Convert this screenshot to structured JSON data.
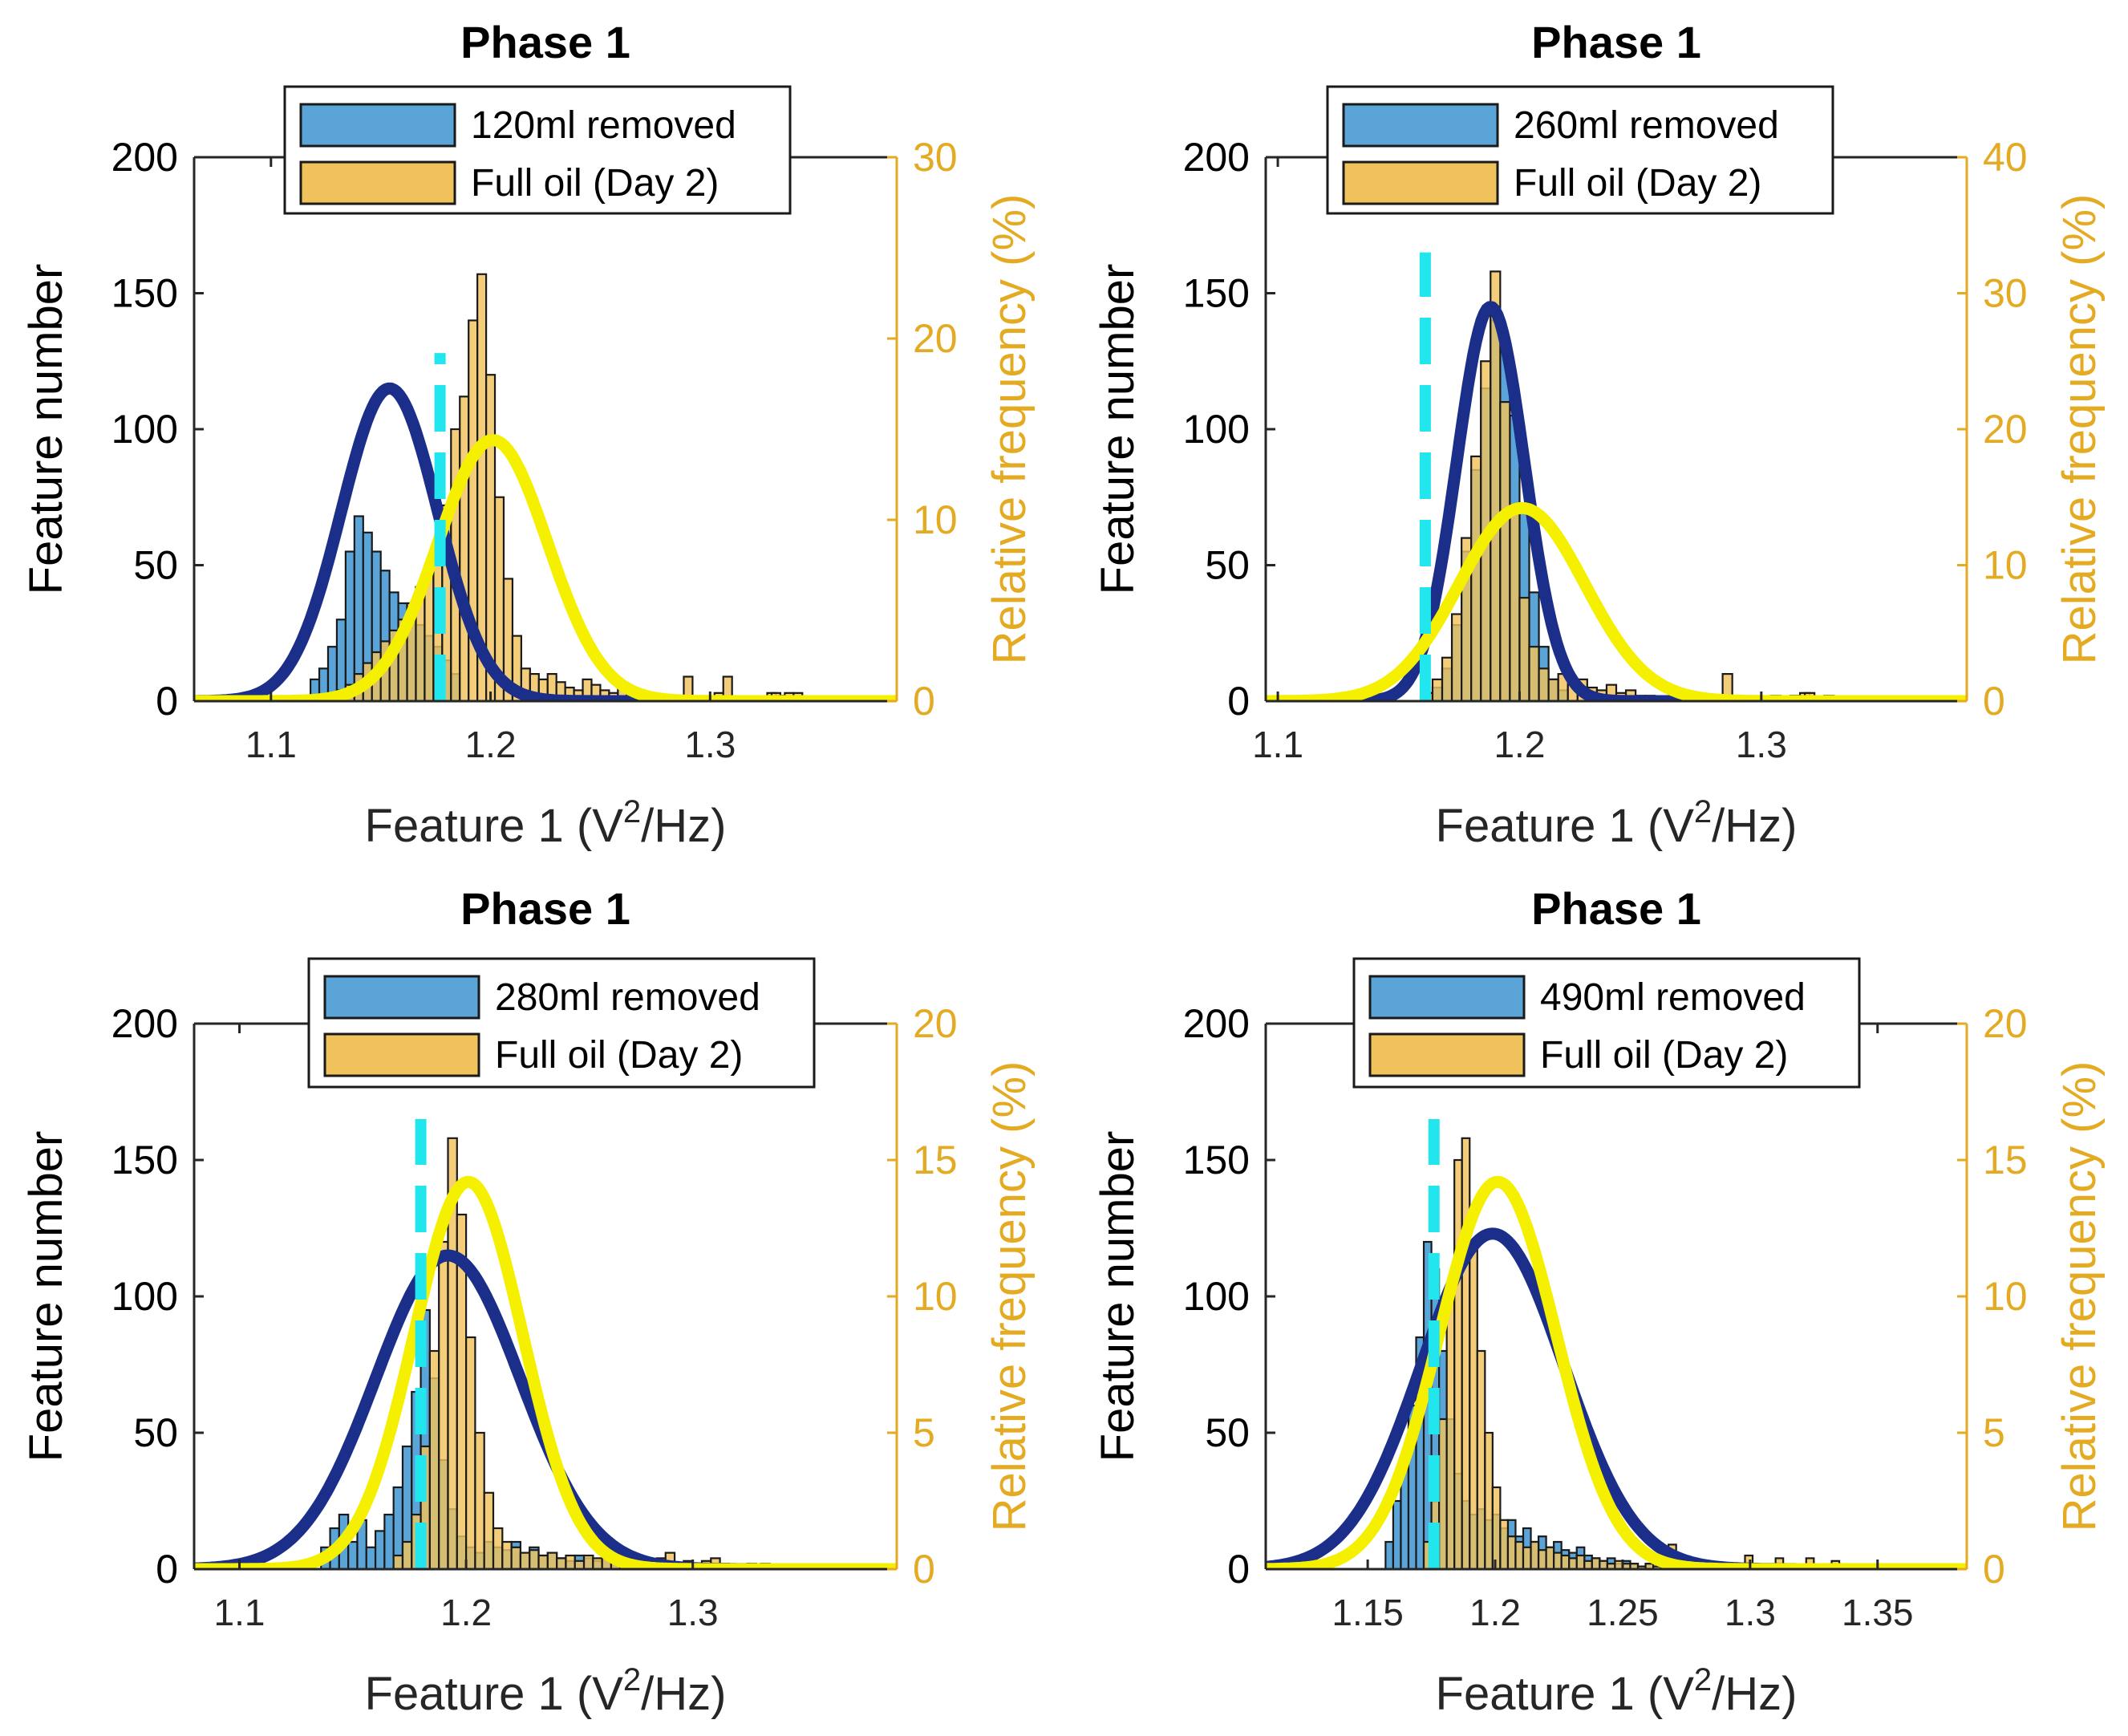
{
  "colors": {
    "blue_bar": "#5ba4d8",
    "orange_bar": "#f0c25c",
    "blue_curve": "#1b2f8a",
    "yellow_curve": "#f5f000",
    "threshold": "#22e6ee",
    "right_axis": "#e3aa22",
    "axis": "#262626"
  },
  "chart_data": [
    {
      "type": "bar",
      "title": "Phase 1",
      "xlabel": "Feature 1 (V",
      "xlabel_sup": "2",
      "xlabel_end": "/Hz)",
      "ylabel": "Feature number",
      "y2label": "Relative frequency (%)",
      "xlim": [
        1.065,
        1.385
      ],
      "ylim": [
        0,
        200
      ],
      "y2lim": [
        0,
        30
      ],
      "xticks": [
        1.1,
        1.2,
        1.3
      ],
      "xtick_labels": [
        "1.1",
        "1.2",
        "1.3"
      ],
      "yticks": [
        0,
        50,
        100,
        150,
        200
      ],
      "ytick_labels": [
        "0",
        "50",
        "100",
        "150",
        "200"
      ],
      "y2ticks": [
        0,
        10,
        20,
        30
      ],
      "y2tick_labels": [
        "0",
        "10",
        "20",
        "30"
      ],
      "legend_position": "top",
      "legend": [
        "120ml removed",
        "Full oil (Day 2)"
      ],
      "threshold_x": 1.177,
      "threshold_yrange": [
        0,
        128
      ],
      "bin_width": 0.004,
      "series": [
        {
          "name": "120ml removed",
          "start": 1.118,
          "counts": [
            8,
            12,
            20,
            30,
            55,
            68,
            62,
            55,
            48,
            40,
            36,
            32,
            28,
            24,
            20,
            15,
            10
          ]
        },
        {
          "name": "Full oil (Day 2)",
          "start": 1.13,
          "counts": [
            4,
            6,
            10,
            14,
            18,
            22,
            26,
            30,
            36,
            42,
            48,
            58,
            72,
            100,
            112,
            140,
            157,
            120,
            75,
            45,
            24,
            12,
            10,
            8,
            10,
            7,
            5,
            4,
            8,
            6,
            4,
            3,
            5,
            2,
            4,
            3,
            2,
            2,
            1,
            2,
            1,
            1,
            1,
            3,
            9,
            1,
            1,
            1,
            1,
            3,
            2,
            3
          ],
          "extra": [
            [
              1.288,
              9
            ],
            [
              1.328,
              3
            ],
            [
              1.338,
              3
            ]
          ]
        },
        {
          "name": "fit 120ml removed",
          "mu": 1.154,
          "sigma": 0.022,
          "peak": 115
        },
        {
          "name": "fit Full oil (Day 2)",
          "mu": 1.201,
          "sigma": 0.025,
          "peak": 96
        }
      ]
    },
    {
      "type": "bar",
      "title": "Phase 1",
      "xlabel": "Feature 1 (V",
      "xlabel_sup": "2",
      "xlabel_end": "/Hz)",
      "ylabel": "Feature number",
      "y2label": "Relative frequency (%)",
      "xlim": [
        1.095,
        1.385
      ],
      "ylim": [
        0,
        200
      ],
      "y2lim": [
        0,
        40
      ],
      "xticks": [
        1.1,
        1.2,
        1.3
      ],
      "xtick_labels": [
        "1.1",
        "1.2",
        "1.3"
      ],
      "yticks": [
        0,
        50,
        100,
        150,
        200
      ],
      "ytick_labels": [
        "0",
        "50",
        "100",
        "150",
        "200"
      ],
      "y2ticks": [
        0,
        10,
        20,
        30,
        40
      ],
      "y2tick_labels": [
        "0",
        "10",
        "20",
        "30",
        "40"
      ],
      "legend_position": "top",
      "legend": [
        "260ml removed",
        "Full oil (Day 2)"
      ],
      "threshold_x": 1.161,
      "threshold_yrange": [
        0,
        165
      ],
      "bin_width": 0.004,
      "series": [
        {
          "name": "260ml removed",
          "start": 1.164,
          "counts": [
            5,
            12,
            28,
            55,
            85,
            115,
            140,
            130,
            105,
            70,
            40,
            20,
            8,
            4
          ]
        },
        {
          "name": "Full oil (Day 2)",
          "start": 1.16,
          "counts": [
            3,
            8,
            16,
            32,
            60,
            90,
            125,
            158,
            110,
            70,
            38,
            20,
            12,
            8,
            10,
            6,
            8,
            5,
            4,
            6,
            3,
            4,
            2,
            2,
            1,
            1,
            2,
            1,
            1,
            1,
            2,
            10,
            1,
            1,
            1,
            1,
            2,
            1,
            2,
            3
          ],
          "extra": [
            [
              1.318,
              3
            ],
            [
              1.326,
              2
            ]
          ]
        },
        {
          "name": "fit 260ml removed",
          "mu": 1.188,
          "sigma": 0.014,
          "peak": 145
        },
        {
          "name": "fit Full oil (Day 2)",
          "mu": 1.201,
          "sigma": 0.026,
          "peak": 71
        }
      ]
    },
    {
      "type": "bar",
      "title": "Phase 1",
      "xlabel": "Feature 1 (V",
      "xlabel_sup": "2",
      "xlabel_end": "/Hz)",
      "ylabel": "Feature number",
      "y2label": "Relative frequency (%)",
      "xlim": [
        1.08,
        1.39
      ],
      "ylim": [
        0,
        200
      ],
      "y2lim": [
        0,
        20
      ],
      "xticks": [
        1.1,
        1.2,
        1.3
      ],
      "xtick_labels": [
        "1.1",
        "1.2",
        "1.3"
      ],
      "yticks": [
        0,
        50,
        100,
        150,
        200
      ],
      "ytick_labels": [
        "0",
        "50",
        "100",
        "150",
        "200"
      ],
      "y2ticks": [
        0,
        5,
        10,
        15,
        20
      ],
      "y2tick_labels": [
        "0",
        "5",
        "10",
        "15",
        "20"
      ],
      "legend_position": "top",
      "legend": [
        "280ml removed",
        "Full oil (Day 2)"
      ],
      "threshold_x": 1.18,
      "threshold_yrange": [
        0,
        165
      ],
      "bin_width": 0.004,
      "series": [
        {
          "name": "280ml removed",
          "start": 1.136,
          "counts": [
            8,
            15,
            20,
            10,
            18,
            8,
            14,
            20,
            30,
            45,
            65,
            95,
            70,
            40,
            22,
            12,
            8,
            6,
            10,
            8,
            7,
            10,
            6,
            8,
            5,
            6,
            4,
            3,
            5,
            4,
            3,
            4,
            2,
            3,
            2,
            3,
            2,
            1,
            2,
            1,
            2,
            1,
            1
          ]
        },
        {
          "name": "Full oil (Day 2)",
          "start": 1.168,
          "counts": [
            5,
            10,
            20,
            45,
            80,
            120,
            158,
            130,
            85,
            50,
            28,
            15,
            10,
            8,
            6,
            7,
            5,
            6,
            4,
            5,
            3,
            5,
            4,
            6,
            3,
            5,
            2,
            3,
            2,
            4,
            6,
            2,
            3,
            2,
            3,
            1,
            2,
            1,
            1,
            2,
            1,
            1
          ],
          "extra": [
            [
              1.308,
              4
            ],
            [
              1.33,
              2
            ]
          ]
        },
        {
          "name": "fit 280ml removed",
          "mu": 1.192,
          "sigma": 0.032,
          "peak": 115
        },
        {
          "name": "fit Full oil (Day 2)",
          "mu": 1.201,
          "sigma": 0.024,
          "peak": 142
        }
      ]
    },
    {
      "type": "bar",
      "title": "Phase 1",
      "xlabel": "Feature 1 (V",
      "xlabel_sup": "2",
      "xlabel_end": "/Hz)",
      "ylabel": "Feature number",
      "y2label": "Relative frequency (%)",
      "xlim": [
        1.11,
        1.385
      ],
      "ylim": [
        0,
        200
      ],
      "y2lim": [
        0,
        20
      ],
      "xticks": [
        1.15,
        1.2,
        1.25,
        1.3,
        1.35
      ],
      "xtick_labels": [
        "1.15",
        "1.2",
        "1.25",
        "1.3",
        "1.35"
      ],
      "yticks": [
        0,
        50,
        100,
        150,
        200
      ],
      "ytick_labels": [
        "0",
        "50",
        "100",
        "150",
        "200"
      ],
      "y2ticks": [
        0,
        5,
        10,
        15,
        20
      ],
      "y2tick_labels": [
        "0",
        "5",
        "10",
        "15",
        "20"
      ],
      "legend_position": "top",
      "legend": [
        "490ml removed",
        "Full oil (Day 2)"
      ],
      "threshold_x": 1.176,
      "threshold_yrange": [
        0,
        165
      ],
      "bin_width": 0.003,
      "series": [
        {
          "name": "490ml removed",
          "start": 1.157,
          "counts": [
            10,
            25,
            40,
            60,
            85,
            120,
            110,
            80,
            55,
            35,
            25,
            20,
            22,
            18,
            20,
            15,
            18,
            12,
            15,
            10,
            12,
            8,
            10,
            7,
            6,
            8,
            5,
            4,
            3,
            4,
            2,
            3,
            2,
            1,
            2,
            1,
            1
          ]
        },
        {
          "name": "Full oil (Day 2)",
          "start": 1.172,
          "counts": [
            10,
            25,
            55,
            100,
            150,
            158,
            120,
            80,
            50,
            30,
            18,
            12,
            10,
            8,
            10,
            7,
            8,
            6,
            5,
            4,
            5,
            3,
            4,
            3,
            2,
            3,
            2,
            2,
            1,
            2,
            1,
            1,
            9,
            2,
            1,
            2,
            3
          ],
          "extra": [
            [
              1.298,
              5
            ],
            [
              1.31,
              4
            ],
            [
              1.322,
              4
            ],
            [
              1.332,
              3
            ]
          ]
        },
        {
          "name": "fit 490ml removed",
          "mu": 1.199,
          "sigma": 0.028,
          "peak": 123
        },
        {
          "name": "fit Full oil (Day 2)",
          "mu": 1.201,
          "sigma": 0.023,
          "peak": 142
        }
      ]
    }
  ]
}
